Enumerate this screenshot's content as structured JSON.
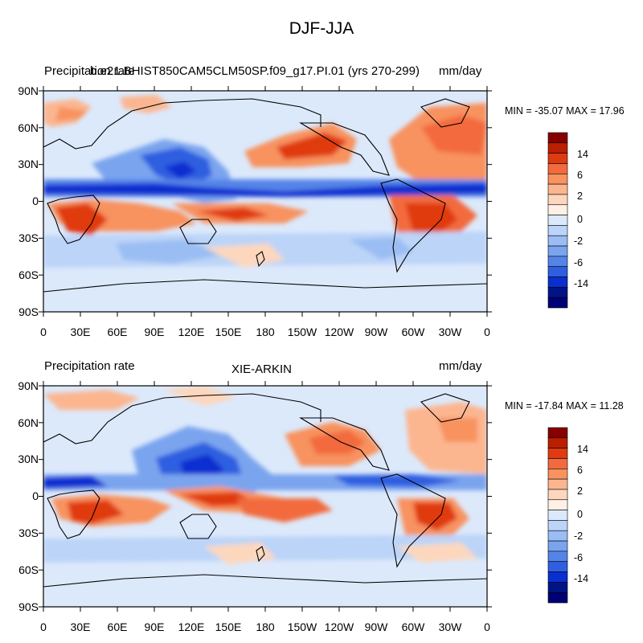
{
  "title": "DJF-JJA",
  "panels": [
    {
      "left_label": "Precipitation rate",
      "center_label": "b.e21.BHIST850CAM5CLM50SP.f09_g17.PI.01 (yrs 270-299)",
      "right_label": "mm/day",
      "min_max": "MIN = -35.07 MAX =  17.96"
    },
    {
      "left_label": "Precipitation rate",
      "center_label": "XIE-ARKIN",
      "right_label": "mm/day",
      "min_max": "MIN = -17.84 MAX =  11.28"
    }
  ],
  "lat_ticks": [
    "90N",
    "60N",
    "30N",
    "0",
    "30S",
    "60S",
    "90S"
  ],
  "lon_ticks": [
    "0",
    "30E",
    "60E",
    "90E",
    "120E",
    "150E",
    "180",
    "150W",
    "120W",
    "90W",
    "60W",
    "30W",
    "0"
  ],
  "colorbar": {
    "labels": [
      "14",
      "6",
      "2",
      "0",
      "-2",
      "-6",
      "-14"
    ],
    "colors": [
      "#870000",
      "#bb1f00",
      "#e03a10",
      "#f26a3e",
      "#f8925f",
      "#fbb690",
      "#fdd7bd",
      "#fff0e6",
      "#dce9fb",
      "#bcd4f8",
      "#9abdf3",
      "#7aa4ee",
      "#5584e8",
      "#2f5fe0",
      "#0a2fd0",
      "#001486",
      "#000075"
    ]
  },
  "chart_data": {
    "type": "heatmap",
    "title": "DJF-JJA",
    "units": "mm/day",
    "variable": "Precipitation rate",
    "x_ticks": [
      "0",
      "30E",
      "60E",
      "90E",
      "120E",
      "150E",
      "180",
      "150W",
      "120W",
      "90W",
      "60W",
      "30W",
      "0"
    ],
    "y_ticks": [
      "90N",
      "60N",
      "30N",
      "0",
      "30S",
      "60S",
      "90S"
    ],
    "colorbar_levels": [
      -14,
      -6,
      -2,
      0,
      2,
      6,
      14
    ],
    "panels": [
      {
        "name": "b.e21.BHIST850CAM5CLM50SP.f09_g17.PI.01 (yrs 270-299)",
        "min": -35.07,
        "max": 17.96
      },
      {
        "name": "XIE-ARKIN",
        "min": -17.84,
        "max": 11.28
      }
    ]
  }
}
